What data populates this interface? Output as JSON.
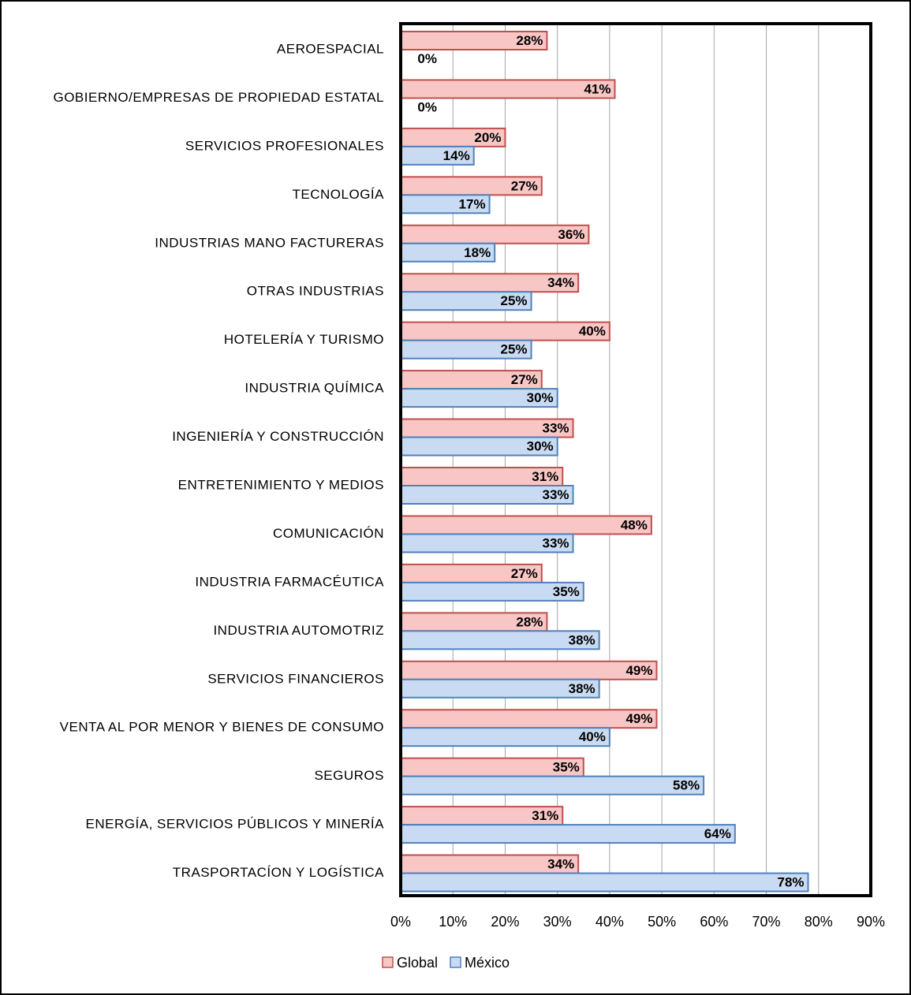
{
  "chart_data": {
    "type": "bar",
    "orientation": "horizontal",
    "categories": [
      "AEROESPACIAL",
      "GOBIERNO/EMPRESAS DE PROPIEDAD ESTATAL",
      "SERVICIOS PROFESIONALES",
      "TECNOLOGÍA",
      "INDUSTRIAS MANO FACTURERAS",
      "OTRAS INDUSTRIAS",
      "HOTELERÍA Y TURISMO",
      "INDUSTRIA QUÍMICA",
      "INGENIERÍA Y CONSTRUCCIÓN",
      "ENTRETENIMIENTO Y MEDIOS",
      "COMUNICACIÓN",
      "INDUSTRIA FARMACÉUTICA",
      "INDUSTRIA AUTOMOTRIZ",
      "SERVICIOS FINANCIEROS",
      "VENTA AL POR MENOR Y BIENES DE CONSUMO",
      "SEGUROS",
      "ENERGÍA, SERVICIOS PÚBLICOS Y MINERÍA",
      "TRASPORTACÍON Y LOGÍSTICA"
    ],
    "series": [
      {
        "name": "Global",
        "color": "#f7c6c5",
        "edge": "#c0504d",
        "values": [
          28,
          41,
          20,
          27,
          36,
          34,
          40,
          27,
          33,
          31,
          48,
          27,
          28,
          49,
          49,
          35,
          31,
          34
        ],
        "value_labels": [
          "28%",
          "41%",
          "20%",
          "27%",
          "36%",
          "34%",
          "40%",
          "27%",
          "33%",
          "31%",
          "48%",
          "27%",
          "28%",
          "49%",
          "49%",
          "35%",
          "31%",
          "34%"
        ]
      },
      {
        "name": "México",
        "color": "#c9dbf2",
        "edge": "#4f81bd",
        "values": [
          0,
          0,
          14,
          17,
          18,
          25,
          25,
          30,
          30,
          33,
          33,
          35,
          38,
          38,
          40,
          58,
          64,
          78
        ],
        "value_labels": [
          "0%",
          "0%",
          "14%",
          "17%",
          "18%",
          "25%",
          "25%",
          "30%",
          "30%",
          "33%",
          "33%",
          "35%",
          "38%",
          "38%",
          "40%",
          "58%",
          "64%",
          "78%"
        ]
      }
    ],
    "xlim": [
      0,
      90
    ],
    "xticks": [
      {
        "value": 0,
        "label": "0%"
      },
      {
        "value": 10,
        "label": "10%"
      },
      {
        "value": 20,
        "label": "20%"
      },
      {
        "value": 30,
        "label": "30%"
      },
      {
        "value": 40,
        "label": "40%"
      },
      {
        "value": 50,
        "label": "50%"
      },
      {
        "value": 60,
        "label": "60%"
      },
      {
        "value": 70,
        "label": "70%"
      },
      {
        "value": 80,
        "label": "80%"
      },
      {
        "value": 90,
        "label": "90%"
      }
    ],
    "grid": true,
    "legend": "bottom"
  }
}
